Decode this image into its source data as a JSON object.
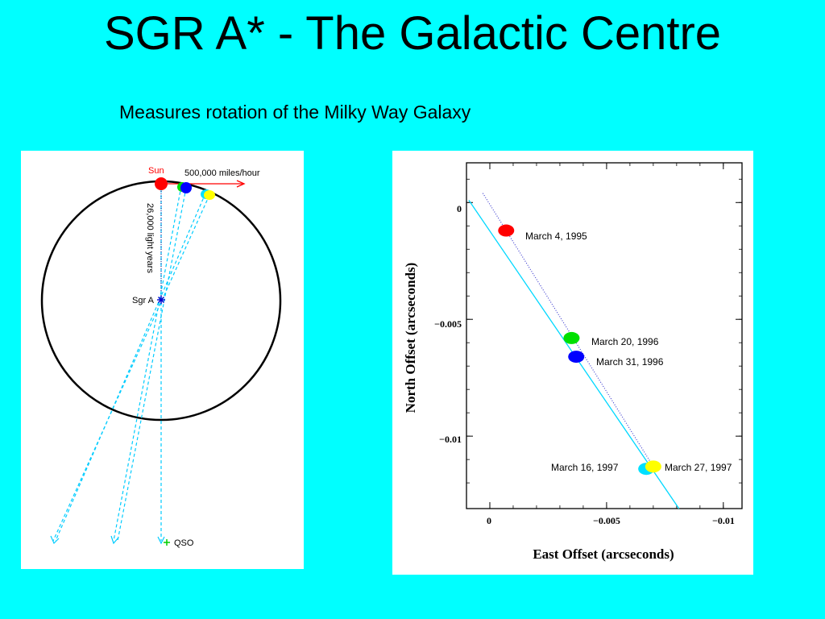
{
  "slide": {
    "title": "SGR A* - The Galactic Centre",
    "subtitle": "Measures rotation of the Milky Way Galaxy"
  },
  "left_diagram": {
    "sun_label": "Sun",
    "speed_label": "500,000 miles/hour",
    "distance_label": "26,000 light years",
    "sgr_label": "Sgr A",
    "qso_label": "QSO"
  },
  "right_chart": {
    "ylabel": "North Offset (arcseconds)",
    "xlabel": "East Offset (arcseconds)",
    "x_ticks": [
      "0",
      "−0.005",
      "−0.01"
    ],
    "y_ticks": [
      "0",
      "−0.005",
      "−0.01"
    ],
    "points": [
      {
        "label": "March 4, 1995",
        "color": "#ff0000"
      },
      {
        "label": "March 20, 1996",
        "color": "#00e000"
      },
      {
        "label": "March 31, 1996",
        "color": "#0000ff"
      },
      {
        "label": "March 16, 1997",
        "color": "#00e0ff"
      },
      {
        "label": "March 27, 1997",
        "color": "#ffff00"
      }
    ]
  },
  "chart_data": {
    "type": "scatter",
    "title": "",
    "xlabel": "East Offset (arcseconds)",
    "ylabel": "North Offset (arcseconds)",
    "xlim": [
      0.001,
      -0.0108
    ],
    "ylim": [
      -0.0131,
      0.0017
    ],
    "x_ticks": [
      0,
      -0.005,
      -0.01
    ],
    "y_ticks": [
      0,
      -0.005,
      -0.01
    ],
    "series": [
      {
        "name": "March 4, 1995",
        "x": [
          -0.0007
        ],
        "y": [
          -0.0012
        ]
      },
      {
        "name": "March 20, 1996",
        "x": [
          -0.0035
        ],
        "y": [
          -0.0058
        ]
      },
      {
        "name": "March 31, 1996",
        "x": [
          -0.0037
        ],
        "y": [
          -0.0066
        ]
      },
      {
        "name": "March 16, 1997",
        "x": [
          -0.0067
        ],
        "y": [
          -0.0114
        ]
      },
      {
        "name": "March 27, 1997",
        "x": [
          -0.007
        ],
        "y": [
          -0.0113
        ]
      }
    ],
    "fit_line": {
      "x": [
        0.0009,
        -0.0081
      ],
      "y": [
        0.0001,
        -0.0131
      ]
    },
    "grid": false
  }
}
